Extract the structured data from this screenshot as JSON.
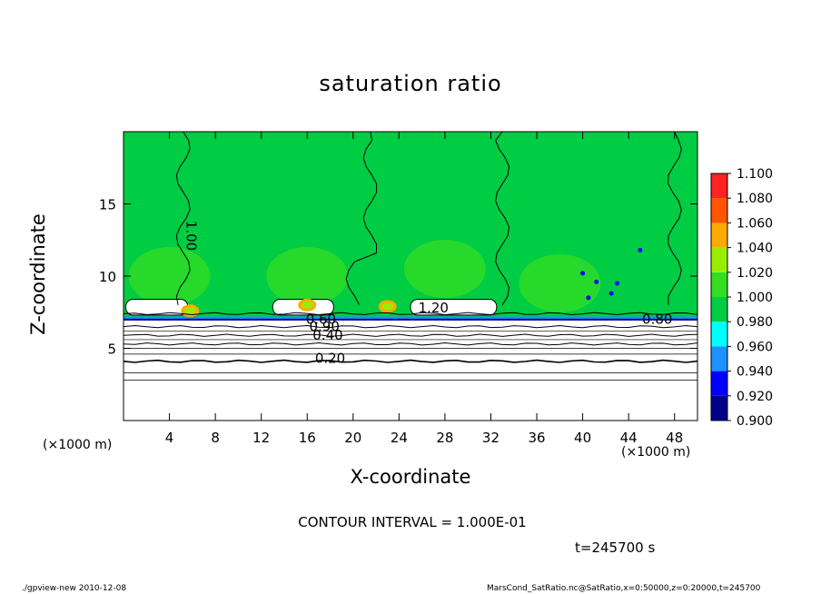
{
  "chart_data": {
    "type": "heatmap",
    "title": "saturation ratio",
    "xlabel": "X-coordinate",
    "ylabel": "Z-coordinate",
    "x_unit_left": "(×1000 m)",
    "x_unit_right": "(×1000 m)",
    "xlim": [
      0,
      50
    ],
    "ylim": [
      0,
      20
    ],
    "x_ticks": [
      4,
      8,
      12,
      16,
      20,
      24,
      28,
      32,
      36,
      40,
      44,
      48
    ],
    "x_tick_labels": [
      "4",
      "8",
      "12",
      "16",
      "20",
      "24",
      "28",
      "32",
      "36",
      "40",
      "44",
      "48"
    ],
    "y_ticks": [
      5,
      10,
      15
    ],
    "y_tick_labels": [
      "5",
      "10",
      "15"
    ],
    "colorbar": {
      "levels": [
        0.9,
        0.92,
        0.94,
        0.96,
        0.98,
        1.0,
        1.02,
        1.04,
        1.06,
        1.08,
        1.1
      ],
      "labels": [
        "0.900",
        "0.920",
        "0.940",
        "0.960",
        "0.980",
        "1.000",
        "1.020",
        "1.040",
        "1.060",
        "1.080",
        "1.100"
      ],
      "colors": [
        "#6a0dad",
        "#00008b",
        "#0000ff",
        "#1e90ff",
        "#00ffff",
        "#00cc44",
        "#33dd22",
        "#99ee00",
        "#ffaa00",
        "#ff5500",
        "#ff2222",
        "#ffaaaa"
      ]
    },
    "contour_lines": [
      {
        "level": 0.2,
        "z": 4.1,
        "label": "0.20"
      },
      {
        "level": 0.4,
        "z": 5.3,
        "label": "0.40"
      },
      {
        "level": 0.6,
        "z": 5.9,
        "label": "0.60"
      },
      {
        "level": 0.8,
        "z": 6.5,
        "label": "0.80"
      },
      {
        "level": 1.2,
        "z": 7.4,
        "label": "1.20"
      },
      {
        "level": 1.0,
        "z": 15.0,
        "label": "1.00"
      }
    ],
    "contour_labels_extra": [
      "0.80",
      "0.90",
      "1.00"
    ],
    "contour_interval": "CONTOUR INTERVAL = 1.000E-01",
    "time": "t=245700 s"
  },
  "footer": {
    "left": "./gpview-new   2010-12-08",
    "right": "MarsCond_SatRatio.nc@SatRatio,x=0:50000,z=0:20000,t=245700"
  }
}
